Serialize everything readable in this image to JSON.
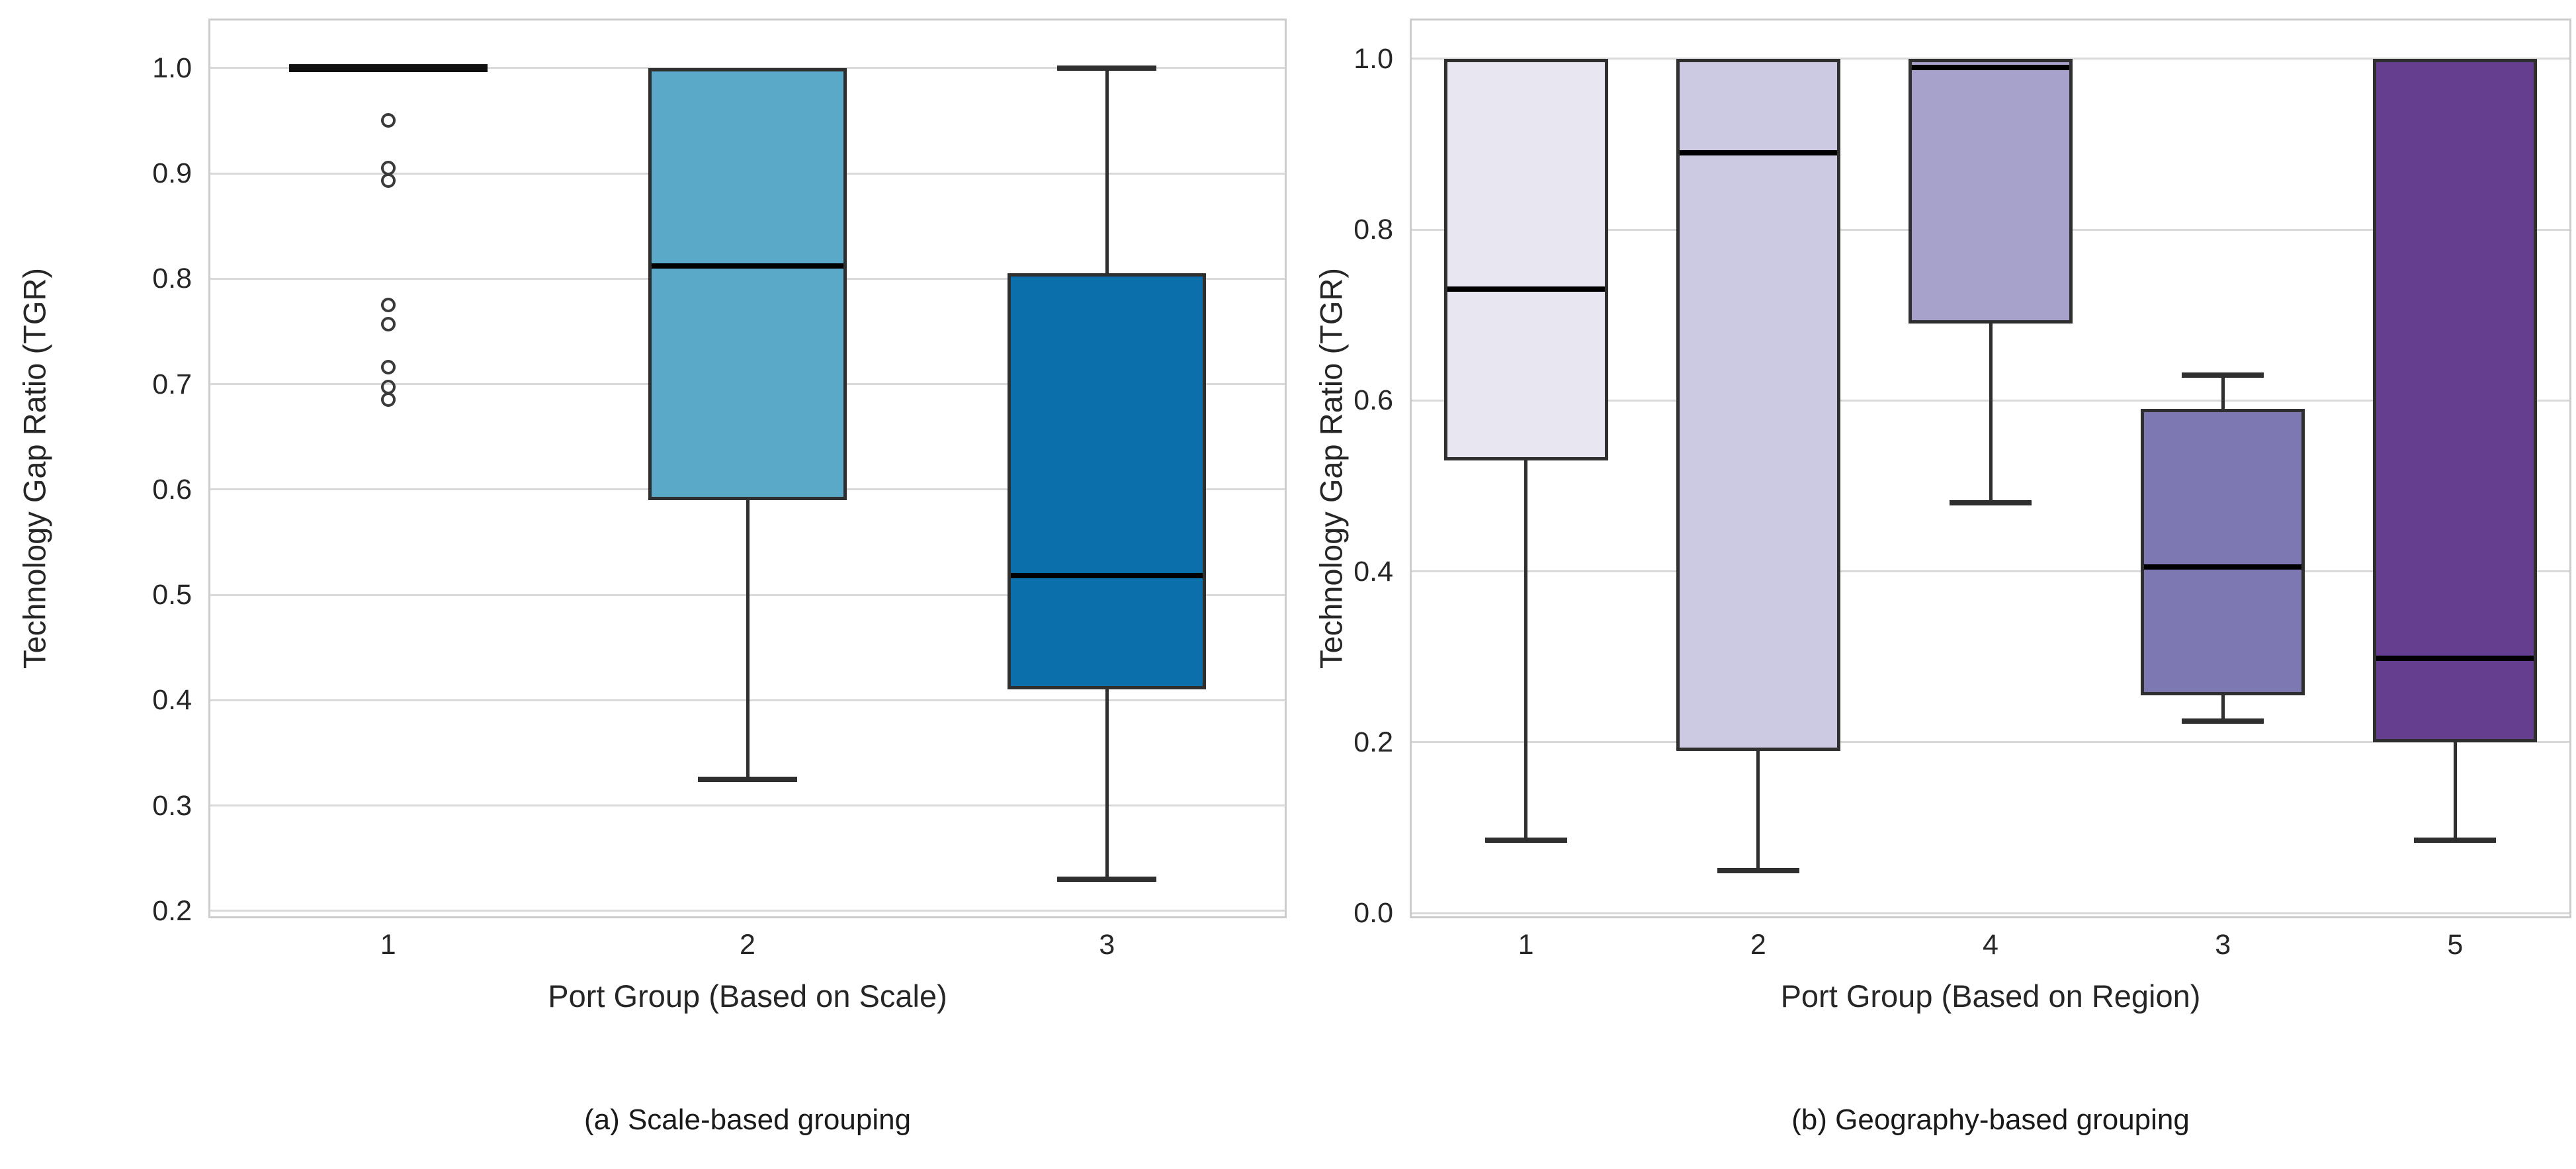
{
  "chart_data": [
    {
      "type": "box",
      "panel": "a",
      "title": "(a) Scale-based grouping",
      "xlabel": "Port Group (Based on Scale)",
      "ylabel": "Technology Gap Ratio (TGR)",
      "yticks": [
        "1.0",
        "0.9",
        "0.8",
        "0.7",
        "0.6",
        "0.5",
        "0.4",
        "0.3",
        "0.2"
      ],
      "ylim": [
        0.193,
        1.047
      ],
      "grid": "horizontal",
      "legend": "none",
      "categories": [
        "1",
        "2",
        "3"
      ],
      "series": [
        {
          "category": "1",
          "whislo": 1.0,
          "q1": 1.0,
          "med": 1.0,
          "q3": 1.0,
          "whishi": 1.0,
          "degenerate": true,
          "fill": null,
          "outliers": [
            0.95,
            0.905,
            0.893,
            0.775,
            0.757,
            0.716,
            0.697,
            0.685
          ]
        },
        {
          "category": "2",
          "whislo": 0.325,
          "q1": 0.59,
          "med": 0.812,
          "q3": 1.0,
          "whishi": 1.0,
          "degenerate": false,
          "fill": "#5ba9c9",
          "outliers": []
        },
        {
          "category": "3",
          "whislo": 0.23,
          "q1": 0.41,
          "med": 0.518,
          "q3": 0.805,
          "whishi": 1.0,
          "degenerate": false,
          "fill": "#0b6fac",
          "outliers": []
        }
      ]
    },
    {
      "type": "box",
      "panel": "b",
      "title": "(b) Geography-based grouping",
      "xlabel": "Port Group (Based on Region)",
      "ylabel": "Technology Gap Ratio (TGR)",
      "yticks": [
        "1.0",
        "0.8",
        "0.6",
        "0.4",
        "0.2",
        "0.0"
      ],
      "ylim": [
        -0.006,
        1.047
      ],
      "grid": "horizontal",
      "legend": "none",
      "categories": [
        "1",
        "2",
        "4",
        "3",
        "5"
      ],
      "series": [
        {
          "category": "1",
          "whislo": 0.085,
          "q1": 0.53,
          "med": 0.73,
          "q3": 1.0,
          "whishi": 1.0,
          "degenerate": false,
          "fill": "#e8e7f1",
          "outliers": []
        },
        {
          "category": "2",
          "whislo": 0.05,
          "q1": 0.19,
          "med": 0.89,
          "q3": 1.0,
          "whishi": 1.0,
          "degenerate": false,
          "fill": "#cbcae2",
          "outliers": []
        },
        {
          "category": "4",
          "whislo": 0.48,
          "q1": 0.69,
          "med": 0.99,
          "q3": 1.0,
          "whishi": 1.0,
          "degenerate": false,
          "fill": "#a6a2cb",
          "outliers": []
        },
        {
          "category": "3",
          "whislo": 0.225,
          "q1": 0.255,
          "med": 0.405,
          "q3": 0.59,
          "whishi": 0.63,
          "degenerate": false,
          "fill": "#7d78b1",
          "outliers": []
        },
        {
          "category": "5",
          "whislo": 0.085,
          "q1": 0.2,
          "med": 0.298,
          "q3": 1.0,
          "whishi": 1.0,
          "degenerate": false,
          "fill": "#663e90",
          "outliers": []
        }
      ]
    }
  ],
  "colors": {
    "box_edge": "#2f2f2f",
    "median": "#000000",
    "whisker": "#2f2f2f",
    "gridline": "#d9d9d9",
    "spine": "#cccccc",
    "text": "#262626",
    "background": "#ffffff"
  }
}
